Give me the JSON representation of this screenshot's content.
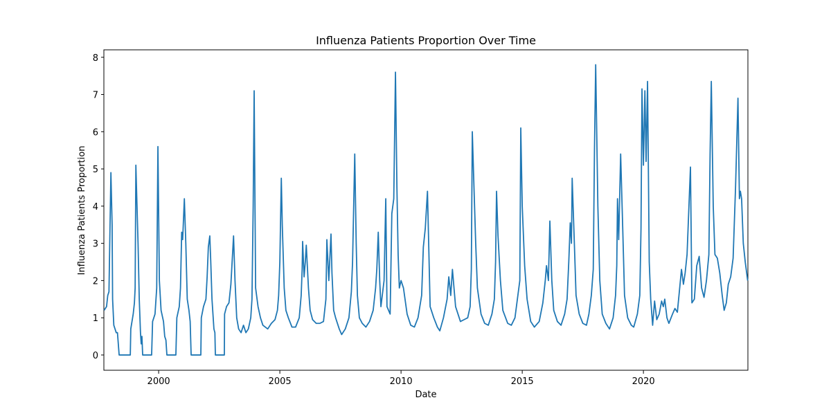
{
  "chart_data": {
    "type": "line",
    "title": "Influenza Patients Proportion Over Time",
    "x_label": "Date",
    "y_label": "Influenza Patients Proportion",
    "xlim": [
      1997.74,
      2024.31
    ],
    "xticks": [
      2000,
      2005,
      2010,
      2015,
      2020
    ],
    "ylim": [
      -0.41,
      8.2
    ],
    "yticks": [
      0,
      1,
      2,
      3,
      4,
      5,
      6,
      7,
      8
    ],
    "series": [
      {
        "color": "#1f77b4",
        "x": [
          1997.75,
          1997.85,
          1997.9,
          1997.95,
          1998.0,
          1998.03,
          1998.08,
          1998.1,
          1998.15,
          1998.2,
          1998.25,
          1998.3,
          1998.37,
          1998.83,
          1998.85,
          1998.95,
          1999.0,
          1999.03,
          1999.06,
          1999.15,
          1999.2,
          1999.25,
          1999.28,
          1999.31,
          1999.34,
          1999.71,
          1999.75,
          1999.85,
          1999.92,
          1999.97,
          2000.03,
          2000.1,
          2000.2,
          2000.25,
          2000.3,
          2000.34,
          2000.71,
          2000.75,
          2000.85,
          2000.9,
          2000.95,
          2000.99,
          2001.06,
          2001.12,
          2001.18,
          2001.25,
          2001.3,
          2001.34,
          2001.74,
          2001.76,
          2001.85,
          2001.95,
          2002.0,
          2002.05,
          2002.11,
          2002.15,
          2002.2,
          2002.28,
          2002.32,
          2002.34,
          2002.71,
          2002.72,
          2002.8,
          2002.9,
          2002.98,
          2003.09,
          2003.15,
          2003.22,
          2003.3,
          2003.4,
          2003.5,
          2003.6,
          2003.7,
          2003.8,
          2003.85,
          2003.9,
          2003.94,
          2004.0,
          2004.1,
          2004.2,
          2004.3,
          2004.5,
          2004.65,
          2004.8,
          2004.9,
          2004.95,
          2005.0,
          2005.06,
          2005.1,
          2005.18,
          2005.25,
          2005.35,
          2005.5,
          2005.65,
          2005.8,
          2005.88,
          2005.92,
          2005.94,
          2006.0,
          2006.05,
          2006.09,
          2006.18,
          2006.25,
          2006.35,
          2006.5,
          2006.65,
          2006.8,
          2006.9,
          2006.94,
          2007.02,
          2007.11,
          2007.15,
          2007.22,
          2007.3,
          2007.45,
          2007.55,
          2007.7,
          2007.85,
          2007.95,
          2008.0,
          2008.09,
          2008.15,
          2008.2,
          2008.28,
          2008.4,
          2008.55,
          2008.7,
          2008.85,
          2008.95,
          2009.0,
          2009.06,
          2009.12,
          2009.17,
          2009.3,
          2009.37,
          2009.42,
          2009.55,
          2009.62,
          2009.7,
          2009.77,
          2009.83,
          2009.88,
          2009.93,
          2010.0,
          2010.1,
          2010.25,
          2010.4,
          2010.55,
          2010.7,
          2010.85,
          2010.92,
          2011.0,
          2011.09,
          2011.14,
          2011.2,
          2011.35,
          2011.5,
          2011.6,
          2011.75,
          2011.9,
          2011.97,
          2012.05,
          2012.12,
          2012.25,
          2012.45,
          2012.6,
          2012.75,
          2012.85,
          2012.9,
          2012.94,
          2013.0,
          2013.08,
          2013.15,
          2013.3,
          2013.45,
          2013.6,
          2013.75,
          2013.85,
          2013.9,
          2013.94,
          2014.0,
          2014.1,
          2014.2,
          2014.4,
          2014.55,
          2014.7,
          2014.8,
          2014.9,
          2014.94,
          2015.0,
          2015.1,
          2015.2,
          2015.35,
          2015.5,
          2015.7,
          2015.85,
          2015.95,
          2016.0,
          2016.08,
          2016.14,
          2016.22,
          2016.3,
          2016.45,
          2016.6,
          2016.75,
          2016.85,
          2016.92,
          2016.98,
          2017.03,
          2017.06,
          2017.15,
          2017.22,
          2017.35,
          2017.5,
          2017.65,
          2017.75,
          2017.85,
          2017.93,
          2017.98,
          2018.03,
          2018.12,
          2018.2,
          2018.3,
          2018.45,
          2018.6,
          2018.75,
          2018.85,
          2018.9,
          2018.93,
          2018.98,
          2019.06,
          2019.15,
          2019.22,
          2019.35,
          2019.5,
          2019.6,
          2019.75,
          2019.85,
          2019.9,
          2019.94,
          2020.0,
          2020.06,
          2020.11,
          2020.17,
          2020.24,
          2020.3,
          2020.38,
          2020.46,
          2020.55,
          2020.65,
          2020.75,
          2020.82,
          2020.88,
          2020.97,
          2021.05,
          2021.2,
          2021.3,
          2021.4,
          2021.57,
          2021.65,
          2021.72,
          2021.8,
          2021.94,
          2022.0,
          2022.1,
          2022.2,
          2022.3,
          2022.4,
          2022.5,
          2022.6,
          2022.7,
          2022.75,
          2022.8,
          2022.88,
          2022.95,
          2023.05,
          2023.15,
          2023.25,
          2023.33,
          2023.42,
          2023.5,
          2023.6,
          2023.7,
          2023.8,
          2023.9,
          2023.96,
          2024.0,
          2024.05,
          2024.12,
          2024.2,
          2024.3
        ],
        "values": [
          1.2,
          1.3,
          1.6,
          1.7,
          3.7,
          4.9,
          3.5,
          1.5,
          0.8,
          0.7,
          0.6,
          0.6,
          0,
          0,
          0.7,
          1.1,
          1.4,
          1.8,
          5.1,
          3.0,
          1.5,
          0.6,
          0.3,
          0.5,
          0,
          0,
          0.9,
          1.1,
          1.8,
          5.6,
          2.0,
          1.2,
          0.9,
          0.5,
          0.4,
          0,
          0,
          1.0,
          1.3,
          1.8,
          3.3,
          3.1,
          4.2,
          3.0,
          1.5,
          1.2,
          0.9,
          0,
          0,
          1.0,
          1.3,
          1.5,
          2.1,
          2.9,
          3.2,
          2.5,
          1.5,
          0.7,
          0.6,
          0,
          0,
          1.1,
          1.3,
          1.4,
          1.9,
          3.2,
          2.0,
          1.0,
          0.7,
          0.6,
          0.8,
          0.6,
          0.7,
          1.0,
          1.5,
          4.0,
          7.1,
          1.8,
          1.3,
          1.0,
          0.8,
          0.7,
          0.85,
          0.95,
          1.2,
          1.6,
          2.5,
          4.75,
          3.5,
          1.8,
          1.2,
          1.0,
          0.75,
          0.75,
          1.0,
          1.6,
          2.3,
          3.05,
          2.1,
          2.5,
          2.95,
          1.8,
          1.2,
          0.95,
          0.85,
          0.85,
          0.9,
          1.5,
          3.1,
          2.0,
          3.25,
          2.2,
          1.2,
          1.0,
          0.7,
          0.55,
          0.7,
          1.0,
          1.7,
          2.5,
          5.4,
          3.0,
          1.6,
          1.0,
          0.85,
          0.75,
          0.9,
          1.2,
          1.8,
          2.3,
          3.3,
          2.0,
          1.3,
          2.0,
          4.2,
          1.3,
          1.1,
          3.8,
          4.2,
          7.6,
          4.5,
          2.7,
          1.8,
          2.0,
          1.8,
          1.1,
          0.8,
          0.75,
          1.0,
          1.6,
          2.9,
          3.4,
          4.4,
          3.0,
          1.3,
          1.0,
          0.75,
          0.65,
          1.0,
          1.5,
          2.1,
          1.6,
          2.3,
          1.3,
          0.9,
          0.95,
          1.0,
          1.3,
          2.3,
          6.0,
          4.7,
          3.0,
          1.8,
          1.1,
          0.85,
          0.8,
          1.1,
          1.5,
          2.5,
          4.4,
          3.2,
          2.0,
          1.2,
          0.85,
          0.8,
          1.0,
          1.5,
          2.0,
          6.1,
          4.0,
          2.4,
          1.5,
          0.9,
          0.75,
          0.9,
          1.4,
          2.0,
          2.4,
          2.0,
          3.6,
          2.0,
          1.2,
          0.9,
          0.8,
          1.1,
          1.5,
          2.5,
          3.55,
          3.0,
          4.75,
          3.0,
          1.6,
          1.1,
          0.85,
          0.8,
          1.1,
          1.6,
          2.3,
          5.5,
          7.8,
          4.0,
          2.0,
          1.1,
          0.85,
          0.7,
          1.0,
          1.6,
          2.4,
          4.2,
          3.1,
          5.4,
          3.3,
          1.6,
          1.0,
          0.8,
          0.75,
          1.1,
          1.6,
          3.4,
          7.15,
          5.1,
          7.1,
          5.2,
          7.35,
          2.5,
          1.5,
          0.8,
          1.45,
          0.95,
          1.1,
          1.45,
          1.3,
          1.5,
          1.0,
          0.85,
          1.1,
          1.25,
          1.15,
          2.3,
          1.9,
          2.2,
          2.7,
          5.05,
          1.4,
          1.5,
          2.4,
          2.65,
          1.8,
          1.55,
          2.0,
          2.7,
          5.4,
          7.35,
          4.0,
          2.7,
          2.6,
          2.2,
          1.6,
          1.2,
          1.4,
          1.9,
          2.1,
          2.6,
          4.5,
          6.9,
          4.2,
          4.4,
          4.2,
          3.0,
          2.5,
          2.0
        ]
      }
    ]
  }
}
